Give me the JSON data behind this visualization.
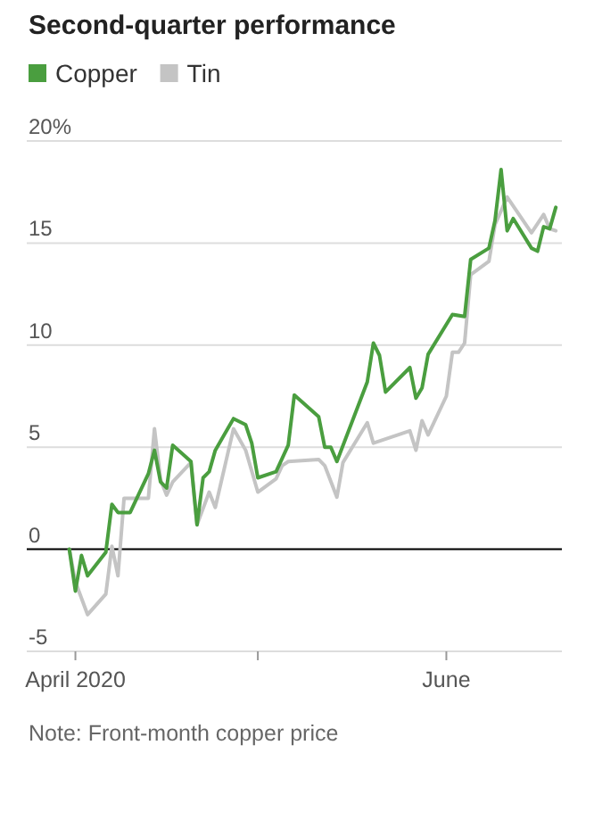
{
  "chart_data": {
    "type": "line",
    "title": "Second-quarter performance",
    "xlim": [
      "2020-03-24",
      "2020-06-20"
    ],
    "xticks": [
      {
        "value": "2020-04-01",
        "label": "April 2020"
      },
      {
        "value": "2020-05-01",
        "label": null
      },
      {
        "value": "2020-06-01",
        "label": "June"
      }
    ],
    "ylim": [
      -5,
      20
    ],
    "yticks": [
      {
        "value": -5,
        "label": "-5"
      },
      0,
      5,
      10,
      15,
      {
        "value": 20,
        "label": "20%"
      }
    ],
    "grid": "y",
    "legend": "top left",
    "ref_lines": [
      {
        "axis": "y",
        "value": 0,
        "color": "#000000"
      }
    ],
    "annotations": [
      "Note: Front-month copper price"
    ],
    "series": [
      {
        "name": "Tin",
        "color": "#c4c4c4",
        "x": [
          "2020-03-31",
          "2020-04-01",
          "2020-04-03",
          "2020-04-06",
          "2020-04-07",
          "2020-04-08",
          "2020-04-09",
          "2020-04-13",
          "2020-04-14",
          "2020-04-15",
          "2020-04-16",
          "2020-04-17",
          "2020-04-20",
          "2020-04-21",
          "2020-04-23",
          "2020-04-24",
          "2020-04-27",
          "2020-04-29",
          "2020-05-01",
          "2020-05-04",
          "2020-05-05",
          "2020-05-06",
          "2020-05-11",
          "2020-05-12",
          "2020-05-14",
          "2020-05-15",
          "2020-05-19",
          "2020-05-20",
          "2020-05-26",
          "2020-05-27",
          "2020-05-28",
          "2020-05-29",
          "2020-06-01",
          "2020-06-02",
          "2020-06-03",
          "2020-06-04",
          "2020-06-05",
          "2020-06-08",
          "2020-06-09",
          "2020-06-11",
          "2020-06-15",
          "2020-06-17",
          "2020-06-18",
          "2020-06-19"
        ],
        "values": [
          0,
          -1.6,
          -3.2,
          -2.2,
          0.15,
          -1.3,
          2.5,
          2.5,
          5.9,
          3.4,
          2.65,
          3.3,
          4.25,
          1.2,
          2.8,
          2.05,
          5.9,
          4.85,
          2.8,
          3.45,
          4.1,
          4.3,
          4.4,
          4.1,
          2.55,
          4.25,
          6.2,
          5.2,
          5.8,
          4.85,
          6.3,
          5.6,
          7.5,
          9.65,
          9.65,
          10.1,
          13.45,
          14.1,
          15.9,
          17.25,
          15.5,
          16.4,
          15.7,
          15.6
        ]
      },
      {
        "name": "Copper",
        "color": "#4a9e3f",
        "x": [
          "2020-03-31",
          "2020-04-01",
          "2020-04-02",
          "2020-04-03",
          "2020-04-06",
          "2020-04-07",
          "2020-04-08",
          "2020-04-10",
          "2020-04-13",
          "2020-04-14",
          "2020-04-15",
          "2020-04-16",
          "2020-04-17",
          "2020-04-20",
          "2020-04-21",
          "2020-04-22",
          "2020-04-23",
          "2020-04-24",
          "2020-04-27",
          "2020-04-29",
          "2020-04-30",
          "2020-05-01",
          "2020-05-04",
          "2020-05-06",
          "2020-05-07",
          "2020-05-11",
          "2020-05-12",
          "2020-05-13",
          "2020-05-14",
          "2020-05-19",
          "2020-05-20",
          "2020-05-21",
          "2020-05-22",
          "2020-05-26",
          "2020-05-27",
          "2020-05-28",
          "2020-05-29",
          "2020-06-02",
          "2020-06-04",
          "2020-06-05",
          "2020-06-08",
          "2020-06-09",
          "2020-06-10",
          "2020-06-11",
          "2020-06-12",
          "2020-06-15",
          "2020-06-16",
          "2020-06-17",
          "2020-06-18",
          "2020-06-19"
        ],
        "values": [
          0,
          -2.05,
          -0.3,
          -1.3,
          -0.15,
          2.2,
          1.8,
          1.8,
          3.7,
          4.85,
          3.3,
          3.0,
          5.1,
          4.3,
          1.2,
          3.5,
          3.8,
          4.85,
          6.4,
          6.1,
          5.2,
          3.5,
          3.8,
          5.1,
          7.55,
          6.5,
          5.0,
          5.0,
          4.3,
          8.2,
          10.1,
          9.5,
          7.7,
          8.9,
          7.4,
          7.9,
          9.55,
          11.5,
          11.4,
          14.2,
          14.75,
          16.1,
          18.6,
          15.6,
          16.2,
          14.75,
          14.6,
          15.8,
          15.7,
          16.75
        ]
      }
    ]
  }
}
